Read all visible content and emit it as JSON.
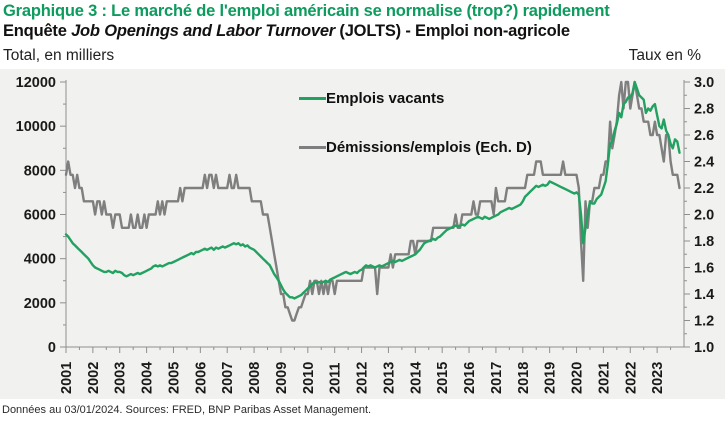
{
  "header": {
    "title": "Graphique 3 : Le marché de l'emploi américain se normalise (trop?) rapidement",
    "subtitle_prefix": "Enquête ",
    "subtitle_italic": "Job Openings and Labor Turnover",
    "subtitle_suffix": " (JOLTS) - Emploi non-agricole",
    "left_axis_title": "Total, en milliers",
    "right_axis_title": "Taux en %"
  },
  "footer": {
    "source": "Données au 03/01/2024. Sources: FRED, BNP Paribas Asset Management."
  },
  "colors": {
    "title_green": "#0d9b5e",
    "series_green": "#22a161",
    "series_gray": "#7f7f7f",
    "panel_bg": "#f1f1ef",
    "axis": "#8f8f8f",
    "tick_text": "#1a1a1a"
  },
  "chart_data": {
    "type": "line",
    "title": "Le marché de l'emploi américain se normalise (trop?) rapidement",
    "x_start_year": 2001,
    "x_end_year": 2024,
    "grid": false,
    "legend_position": "inside-top",
    "left_axis": {
      "label": "Total, en milliers",
      "min": 0,
      "max": 12000,
      "tick_step": 2000,
      "minor_step": 1000,
      "tick_labels": [
        "0",
        "2000",
        "4000",
        "6000",
        "8000",
        "10000",
        "12000"
      ]
    },
    "right_axis": {
      "label": "Taux en %",
      "min": 1.0,
      "max": 3.0,
      "tick_step": 0.2,
      "minor_step": 0.1,
      "tick_labels": [
        "1.0",
        "1.2",
        "1.4",
        "1.6",
        "1.8",
        "2.0",
        "2.2",
        "2.4",
        "2.6",
        "2.8",
        "3.0"
      ]
    },
    "x_tick_labels": [
      "2001",
      "2002",
      "2003",
      "2004",
      "2005",
      "2006",
      "2007",
      "2008",
      "2009",
      "2010",
      "2011",
      "2012",
      "2013",
      "2014",
      "2015",
      "2016",
      "2017",
      "2018",
      "2019",
      "2020",
      "2021",
      "2022",
      "2023"
    ],
    "series": [
      {
        "name": "Emplois vacants",
        "axis": "left",
        "color": "#22a161",
        "start_year": 2001,
        "points_per_year": 12,
        "values": [
          5100,
          5000,
          4850,
          4700,
          4600,
          4500,
          4400,
          4300,
          4200,
          4100,
          4000,
          3850,
          3700,
          3600,
          3550,
          3500,
          3450,
          3400,
          3400,
          3450,
          3400,
          3350,
          3450,
          3400,
          3400,
          3350,
          3250,
          3200,
          3250,
          3300,
          3250,
          3300,
          3350,
          3300,
          3350,
          3400,
          3450,
          3500,
          3550,
          3650,
          3700,
          3650,
          3700,
          3650,
          3700,
          3750,
          3800,
          3800,
          3850,
          3900,
          3950,
          4000,
          4050,
          4100,
          4150,
          4200,
          4250,
          4200,
          4300,
          4300,
          4350,
          4400,
          4450,
          4400,
          4450,
          4500,
          4400,
          4500,
          4450,
          4500,
          4550,
          4500,
          4550,
          4600,
          4650,
          4700,
          4650,
          4700,
          4600,
          4650,
          4550,
          4600,
          4500,
          4450,
          4400,
          4300,
          4200,
          4100,
          4000,
          3900,
          3800,
          3700,
          3500,
          3300,
          3150,
          3000,
          2800,
          2600,
          2450,
          2350,
          2250,
          2250,
          2200,
          2250,
          2300,
          2350,
          2450,
          2550,
          2650,
          2750,
          2850,
          2950,
          2900,
          2950,
          2900,
          2950,
          3000,
          2950,
          3050,
          3100,
          3150,
          3200,
          3250,
          3300,
          3350,
          3400,
          3350,
          3300,
          3350,
          3400,
          3350,
          3450,
          3500,
          3600,
          3700,
          3650,
          3700,
          3650,
          3600,
          3650,
          3700,
          3650,
          3700,
          3750,
          3800,
          3850,
          3900,
          3850,
          3900,
          3950,
          3900,
          3950,
          4000,
          4050,
          4100,
          4150,
          4200,
          4300,
          4400,
          4550,
          4700,
          4750,
          4800,
          4850,
          4900,
          4850,
          4950,
          5000,
          5100,
          5200,
          5300,
          5350,
          5400,
          5450,
          5500,
          5450,
          5500,
          5550,
          5500,
          5600,
          5700,
          5750,
          5800,
          5850,
          5900,
          5850,
          5800,
          5900,
          5850,
          5800,
          5850,
          5900,
          5950,
          6000,
          6100,
          6150,
          6200,
          6250,
          6300,
          6250,
          6300,
          6350,
          6400,
          6450,
          6600,
          6800,
          6900,
          7000,
          7100,
          7200,
          7300,
          7250,
          7300,
          7350,
          7300,
          7350,
          7500,
          7450,
          7400,
          7350,
          7300,
          7250,
          7200,
          7150,
          7100,
          7050,
          7000,
          6950,
          7000,
          6900,
          6000,
          4700,
          5400,
          6000,
          6600,
          6500,
          6500,
          6700,
          6800,
          6900,
          7200,
          7500,
          8300,
          9200,
          9300,
          9800,
          10100,
          10600,
          10400,
          11000,
          11100,
          11300,
          11300,
          11500,
          12000,
          11700,
          11400,
          11300,
          11200,
          10600,
          10800,
          10700,
          10900,
          11000,
          10500,
          10000,
          9900,
          10300,
          9800,
          9600,
          9200,
          9000,
          9400,
          9300,
          8800
        ]
      },
      {
        "name": "Démissions/emplois (Ech. D)",
        "axis": "right",
        "color": "#7f7f7f",
        "start_year": 2001,
        "points_per_year": 12,
        "values": [
          2.3,
          2.4,
          2.3,
          2.3,
          2.2,
          2.3,
          2.2,
          2.2,
          2.1,
          2.1,
          2.1,
          2.1,
          2.1,
          2.0,
          2.1,
          2.1,
          2.0,
          2.1,
          2.0,
          2.0,
          2.0,
          1.9,
          2.0,
          2.0,
          2.0,
          1.9,
          1.9,
          1.9,
          1.9,
          2.0,
          1.9,
          1.9,
          2.0,
          1.9,
          1.9,
          2.0,
          1.9,
          2.0,
          2.0,
          2.0,
          2.0,
          2.1,
          2.0,
          2.1,
          2.0,
          2.1,
          2.1,
          2.1,
          2.1,
          2.1,
          2.1,
          2.2,
          2.1,
          2.2,
          2.2,
          2.2,
          2.2,
          2.2,
          2.2,
          2.2,
          2.2,
          2.2,
          2.3,
          2.2,
          2.3,
          2.3,
          2.2,
          2.3,
          2.2,
          2.2,
          2.2,
          2.2,
          2.2,
          2.3,
          2.2,
          2.2,
          2.3,
          2.2,
          2.2,
          2.2,
          2.2,
          2.2,
          2.2,
          2.1,
          2.1,
          2.1,
          2.1,
          2.1,
          2.0,
          2.0,
          2.0,
          1.9,
          1.8,
          1.7,
          1.6,
          1.5,
          1.4,
          1.4,
          1.3,
          1.3,
          1.25,
          1.2,
          1.2,
          1.25,
          1.3,
          1.3,
          1.35,
          1.4,
          1.4,
          1.5,
          1.4,
          1.5,
          1.5,
          1.4,
          1.5,
          1.4,
          1.5,
          1.4,
          1.5,
          1.5,
          1.4,
          1.5,
          1.5,
          1.5,
          1.5,
          1.5,
          1.5,
          1.5,
          1.5,
          1.5,
          1.5,
          1.5,
          1.5,
          1.6,
          1.6,
          1.6,
          1.6,
          1.6,
          1.6,
          1.4,
          1.6,
          1.6,
          1.6,
          1.6,
          1.6,
          1.7,
          1.6,
          1.7,
          1.7,
          1.7,
          1.7,
          1.7,
          1.7,
          1.7,
          1.8,
          1.8,
          1.7,
          1.8,
          1.8,
          1.8,
          1.8,
          1.8,
          1.8,
          1.8,
          1.9,
          1.9,
          1.9,
          1.9,
          1.9,
          1.9,
          1.9,
          1.9,
          1.9,
          1.9,
          2.0,
          1.9,
          1.9,
          2.0,
          2.0,
          2.0,
          2.0,
          2.0,
          2.1,
          2.0,
          2.0,
          2.1,
          2.1,
          2.1,
          2.1,
          2.1,
          2.1,
          2.0,
          2.2,
          2.1,
          2.1,
          2.1,
          2.1,
          2.2,
          2.2,
          2.2,
          2.2,
          2.2,
          2.2,
          2.2,
          2.2,
          2.2,
          2.3,
          2.3,
          2.3,
          2.3,
          2.4,
          2.4,
          2.4,
          2.3,
          2.3,
          2.3,
          2.3,
          2.3,
          2.3,
          2.3,
          2.3,
          2.3,
          2.4,
          2.3,
          2.3,
          2.3,
          2.3,
          2.3,
          2.3,
          2.2,
          1.8,
          1.5,
          2.1,
          1.9,
          2.1,
          2.1,
          2.2,
          2.2,
          2.2,
          2.3,
          2.3,
          2.4,
          2.4,
          2.7,
          2.5,
          2.6,
          2.7,
          2.9,
          3.0,
          2.8,
          3.0,
          3.0,
          2.8,
          2.9,
          3.0,
          2.9,
          2.8,
          2.8,
          2.7,
          2.7,
          2.7,
          2.6,
          2.6,
          2.7,
          2.6,
          2.6,
          2.5,
          2.4,
          2.6,
          2.6,
          2.4,
          2.3,
          2.3,
          2.3,
          2.2
        ]
      }
    ]
  }
}
